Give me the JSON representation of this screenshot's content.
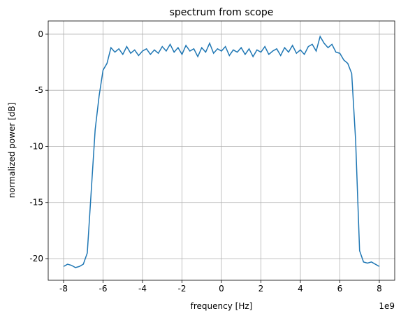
{
  "chart_data": {
    "type": "line",
    "title": "spectrum from scope",
    "x_label": "frequency [Hz]",
    "y_label": "normalized power [dB]",
    "x_offset_label": "1e9",
    "grid": true,
    "xlim": [
      -8.78,
      8.78
    ],
    "ylim": [
      -21.93,
      1.18
    ],
    "xticks": [
      -8,
      -6,
      -4,
      -2,
      0,
      2,
      4,
      6,
      8
    ],
    "yticks": [
      -20,
      -15,
      -10,
      -5,
      0
    ],
    "x": [
      -8.0,
      -7.8,
      -7.6,
      -7.4,
      -7.2,
      -7.0,
      -6.8,
      -6.6,
      -6.4,
      -6.2,
      -6.0,
      -5.8,
      -5.6,
      -5.4,
      -5.2,
      -5.0,
      -4.8,
      -4.6,
      -4.4,
      -4.2,
      -4.0,
      -3.8,
      -3.6,
      -3.4,
      -3.2,
      -3.0,
      -2.8,
      -2.6,
      -2.4,
      -2.2,
      -2.0,
      -1.8,
      -1.6,
      -1.4,
      -1.2,
      -1.0,
      -0.8,
      -0.6,
      -0.4,
      -0.2,
      0.0,
      0.2,
      0.4,
      0.6,
      0.8,
      1.0,
      1.2,
      1.4,
      1.6,
      1.8,
      2.0,
      2.2,
      2.4,
      2.6,
      2.8,
      3.0,
      3.2,
      3.4,
      3.6,
      3.8,
      4.0,
      4.2,
      4.4,
      4.6,
      4.8,
      5.0,
      5.2,
      5.4,
      5.6,
      5.8,
      6.0,
      6.2,
      6.4,
      6.6,
      6.8,
      7.0,
      7.2,
      7.4,
      7.6,
      7.8,
      8.0
    ],
    "series": [
      {
        "color": "#1f77b4",
        "values": [
          -20.7,
          -20.5,
          -20.6,
          -20.8,
          -20.7,
          -20.5,
          -19.5,
          -14,
          -8.5,
          -5.5,
          -3.2,
          -2.6,
          -1.2,
          -1.6,
          -1.3,
          -1.8,
          -1.1,
          -1.7,
          -1.4,
          -1.9,
          -1.5,
          -1.3,
          -1.8,
          -1.4,
          -1.7,
          -1.1,
          -1.5,
          -0.9,
          -1.6,
          -1.2,
          -1.8,
          -1.0,
          -1.5,
          -1.3,
          -2.0,
          -1.2,
          -1.6,
          -0.8,
          -1.7,
          -1.3,
          -1.5,
          -1.1,
          -1.9,
          -1.4,
          -1.6,
          -1.2,
          -1.8,
          -1.3,
          -2.0,
          -1.4,
          -1.6,
          -1.1,
          -1.8,
          -1.5,
          -1.3,
          -1.9,
          -1.2,
          -1.6,
          -1.0,
          -1.7,
          -1.4,
          -1.8,
          -1.1,
          -0.9,
          -1.5,
          -0.2,
          -0.8,
          -1.2,
          -0.9,
          -1.6,
          -1.7,
          -2.3,
          -2.6,
          -3.5,
          -9.5,
          -19.3,
          -20.3,
          -20.4,
          -20.3,
          -20.5,
          -20.7
        ]
      }
    ]
  }
}
